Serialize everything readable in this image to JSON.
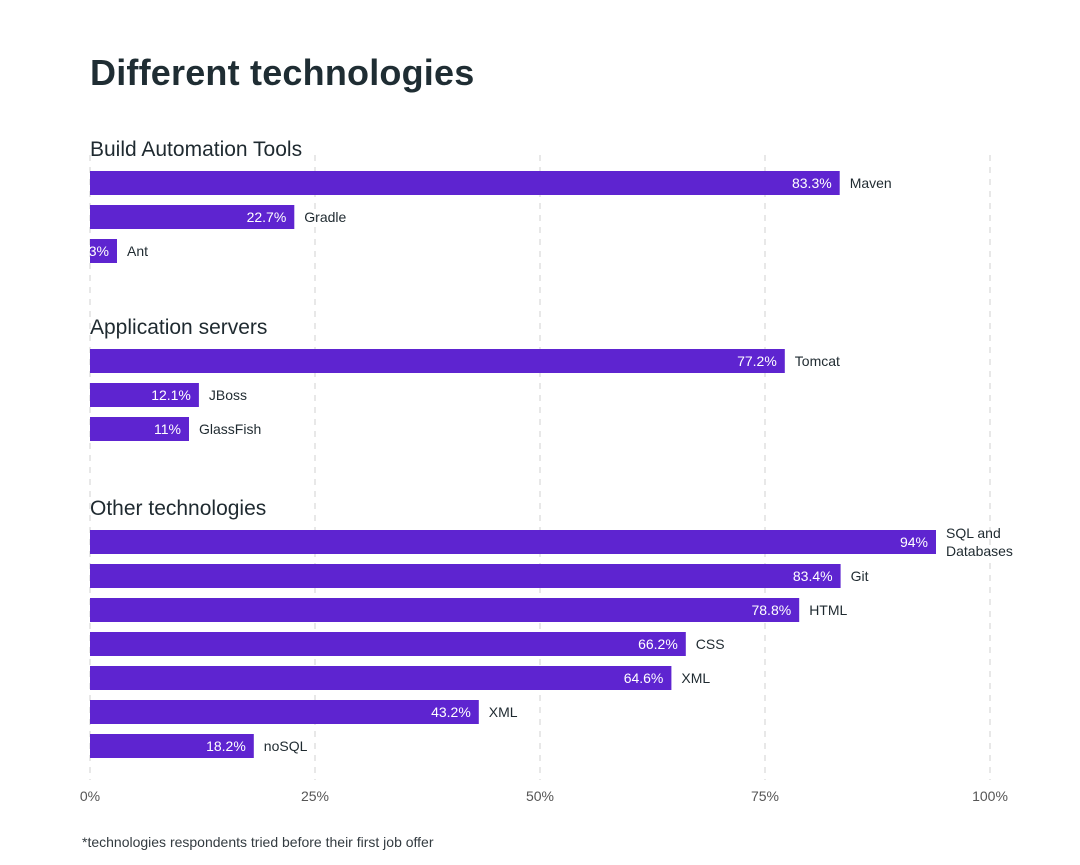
{
  "title": "Different technologies",
  "footnote": "*technologies respondents tried before their first job offer",
  "colors": {
    "bar": "#5e24d0",
    "bar_label": "#ffffff",
    "grid": "#d9d9d9",
    "text": "#1f2a30",
    "tick": "#555555"
  },
  "chart_data": {
    "type": "bar",
    "orientation": "horizontal",
    "xlim": [
      0,
      100
    ],
    "x_ticks": [
      {
        "value": 0,
        "label": "0%"
      },
      {
        "value": 25,
        "label": "25%"
      },
      {
        "value": 50,
        "label": "50%"
      },
      {
        "value": 75,
        "label": "75%"
      },
      {
        "value": 100,
        "label": "100%"
      }
    ],
    "grid": "vertical dashed",
    "groups": [
      {
        "name": "Build Automation Tools",
        "bars": [
          {
            "label": "Maven",
            "value": 83.3,
            "value_label": "83.3%"
          },
          {
            "label": "Gradle",
            "value": 22.7,
            "value_label": "22.7%"
          },
          {
            "label": "Ant",
            "value": 3,
            "value_label": "3%"
          }
        ]
      },
      {
        "name": "Application servers",
        "bars": [
          {
            "label": "Tomcat",
            "value": 77.2,
            "value_label": "77.2%"
          },
          {
            "label": "JBoss",
            "value": 12.1,
            "value_label": "12.1%"
          },
          {
            "label": "GlassFish",
            "value": 11,
            "value_label": "11%"
          }
        ]
      },
      {
        "name": "Other technologies",
        "bars": [
          {
            "label": "SQL and Databases",
            "label_lines": [
              "SQL and",
              "Databases"
            ],
            "value": 94,
            "value_label": "94%"
          },
          {
            "label": "Git",
            "value": 83.4,
            "value_label": "83.4%"
          },
          {
            "label": "HTML",
            "value": 78.8,
            "value_label": "78.8%"
          },
          {
            "label": "CSS",
            "value": 66.2,
            "value_label": "66.2%"
          },
          {
            "label": "XML",
            "value": 64.6,
            "value_label": "64.6%"
          },
          {
            "label": "XML",
            "value": 43.2,
            "value_label": "43.2%"
          },
          {
            "label": "noSQL",
            "value": 18.2,
            "value_label": "18.2%"
          }
        ]
      }
    ]
  }
}
